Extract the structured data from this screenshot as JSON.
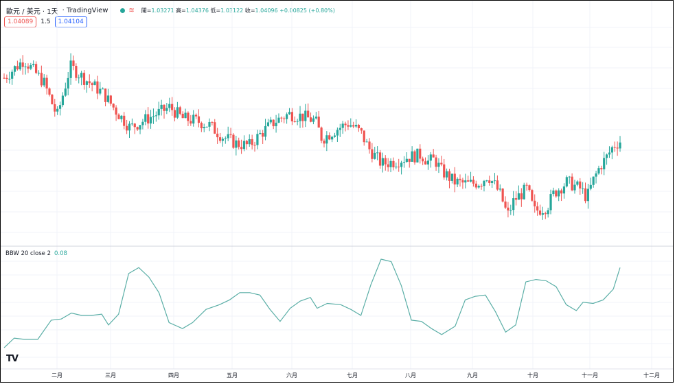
{
  "legend": {
    "symbol": "歐元 / 美元 · 1天",
    "brand": "· TradingView",
    "open_label": "開=",
    "open": "1.03271",
    "high_label": "高=",
    "high": "1.04376",
    "low_label": "低=",
    "low": "1.03122",
    "close_label": "收=",
    "close": "1.04096",
    "change": "+0.00825 (+0.80%)"
  },
  "prices": {
    "sell": "1.04089",
    "spread": "1.5",
    "buy": "1.04104"
  },
  "indicator": {
    "label": "BBW 20 close 2",
    "value": "0.08"
  },
  "logo": "TV",
  "colors": {
    "up": "#26a69a",
    "down": "#ef5350",
    "bbw_line": "#5aaea6",
    "grid": "#f0f3fa"
  },
  "chart_data": [
    {
      "type": "candlestick",
      "title": "歐元 / 美元 · 1天",
      "x_tick_labels": [
        "二月",
        "三月",
        "四月",
        "五月",
        "六月",
        "七月",
        "八月",
        "九月",
        "十月",
        "十一月",
        "十二月"
      ],
      "close_trace": [
        [
          0,
          1.09
        ],
        [
          0.03,
          1.098
        ],
        [
          0.06,
          1.088
        ],
        [
          0.08,
          1.073
        ],
        [
          0.1,
          1.095
        ],
        [
          0.12,
          1.09
        ],
        [
          0.15,
          1.083
        ],
        [
          0.17,
          1.075
        ],
        [
          0.19,
          1.068
        ],
        [
          0.21,
          1.071
        ],
        [
          0.23,
          1.074
        ],
        [
          0.25,
          1.077
        ],
        [
          0.27,
          1.072
        ],
        [
          0.29,
          1.071
        ],
        [
          0.31,
          1.069
        ],
        [
          0.33,
          1.064
        ],
        [
          0.35,
          1.061
        ],
        [
          0.37,
          1.06
        ],
        [
          0.39,
          1.066
        ],
        [
          0.41,
          1.071
        ],
        [
          0.43,
          1.074
        ],
        [
          0.45,
          1.073
        ],
        [
          0.47,
          1.071
        ],
        [
          0.48,
          1.063
        ],
        [
          0.5,
          1.067
        ],
        [
          0.52,
          1.07
        ],
        [
          0.53,
          1.068
        ],
        [
          0.54,
          1.065
        ],
        [
          0.55,
          1.059
        ],
        [
          0.57,
          1.052
        ],
        [
          0.59,
          1.053
        ],
        [
          0.61,
          1.055
        ],
        [
          0.63,
          1.056
        ],
        [
          0.64,
          1.053
        ],
        [
          0.65,
          1.054
        ],
        [
          0.66,
          1.049
        ],
        [
          0.68,
          1.044
        ],
        [
          0.7,
          1.043
        ],
        [
          0.72,
          1.044
        ],
        [
          0.73,
          1.047
        ],
        [
          0.74,
          1.043
        ],
        [
          0.75,
          1.038
        ],
        [
          0.76,
          1.029
        ],
        [
          0.77,
          1.036
        ],
        [
          0.79,
          1.041
        ],
        [
          0.8,
          1.031
        ],
        [
          0.82,
          1.033
        ],
        [
          0.83,
          1.039
        ],
        [
          0.85,
          1.044
        ],
        [
          0.87,
          1.041
        ],
        [
          0.88,
          1.037
        ],
        [
          0.89,
          1.045
        ],
        [
          0.9,
          1.051
        ],
        [
          0.91,
          1.055
        ],
        [
          0.92,
          1.06
        ],
        [
          0.93,
          1.062
        ]
      ],
      "series": [
        {
          "name": "EUR/USD",
          "kind": "ohlc"
        }
      ]
    },
    {
      "type": "line",
      "title": "BBW 20 close 2",
      "x_tick_labels": [
        "二月",
        "三月",
        "四月",
        "五月",
        "六月",
        "七月",
        "八月",
        "九月",
        "十月",
        "十一月",
        "十二月"
      ],
      "series": [
        {
          "name": "BBW 20 close 2",
          "points": [
            [
              0,
              0.012
            ],
            [
              0.015,
              0.02
            ],
            [
              0.03,
              0.019
            ],
            [
              0.05,
              0.019
            ],
            [
              0.07,
              0.035
            ],
            [
              0.085,
              0.036
            ],
            [
              0.1,
              0.041
            ],
            [
              0.115,
              0.039
            ],
            [
              0.13,
              0.039
            ],
            [
              0.145,
              0.04
            ],
            [
              0.155,
              0.031
            ],
            [
              0.17,
              0.04
            ],
            [
              0.185,
              0.074
            ],
            [
              0.2,
              0.079
            ],
            [
              0.215,
              0.071
            ],
            [
              0.23,
              0.058
            ],
            [
              0.245,
              0.033
            ],
            [
              0.265,
              0.028
            ],
            [
              0.28,
              0.033
            ],
            [
              0.3,
              0.044
            ],
            [
              0.32,
              0.048
            ],
            [
              0.335,
              0.052
            ],
            [
              0.35,
              0.058
            ],
            [
              0.365,
              0.058
            ],
            [
              0.38,
              0.056
            ],
            [
              0.395,
              0.044
            ],
            [
              0.41,
              0.034
            ],
            [
              0.425,
              0.045
            ],
            [
              0.44,
              0.051
            ],
            [
              0.455,
              0.054
            ],
            [
              0.465,
              0.045
            ],
            [
              0.48,
              0.049
            ],
            [
              0.5,
              0.048
            ],
            [
              0.515,
              0.044
            ],
            [
              0.53,
              0.039
            ],
            [
              0.545,
              0.065
            ],
            [
              0.56,
              0.086
            ],
            [
              0.575,
              0.084
            ],
            [
              0.59,
              0.064
            ],
            [
              0.605,
              0.035
            ],
            [
              0.62,
              0.034
            ],
            [
              0.635,
              0.028
            ],
            [
              0.65,
              0.023
            ],
            [
              0.67,
              0.03
            ],
            [
              0.685,
              0.052
            ],
            [
              0.7,
              0.055
            ],
            [
              0.715,
              0.056
            ],
            [
              0.73,
              0.042
            ],
            [
              0.745,
              0.025
            ],
            [
              0.76,
              0.031
            ],
            [
              0.775,
              0.067
            ],
            [
              0.79,
              0.069
            ],
            [
              0.805,
              0.068
            ],
            [
              0.82,
              0.063
            ],
            [
              0.835,
              0.048
            ],
            [
              0.85,
              0.043
            ],
            [
              0.86,
              0.05
            ],
            [
              0.875,
              0.049
            ],
            [
              0.89,
              0.052
            ],
            [
              0.905,
              0.061
            ],
            [
              0.915,
              0.079
            ]
          ]
        }
      ]
    }
  ]
}
